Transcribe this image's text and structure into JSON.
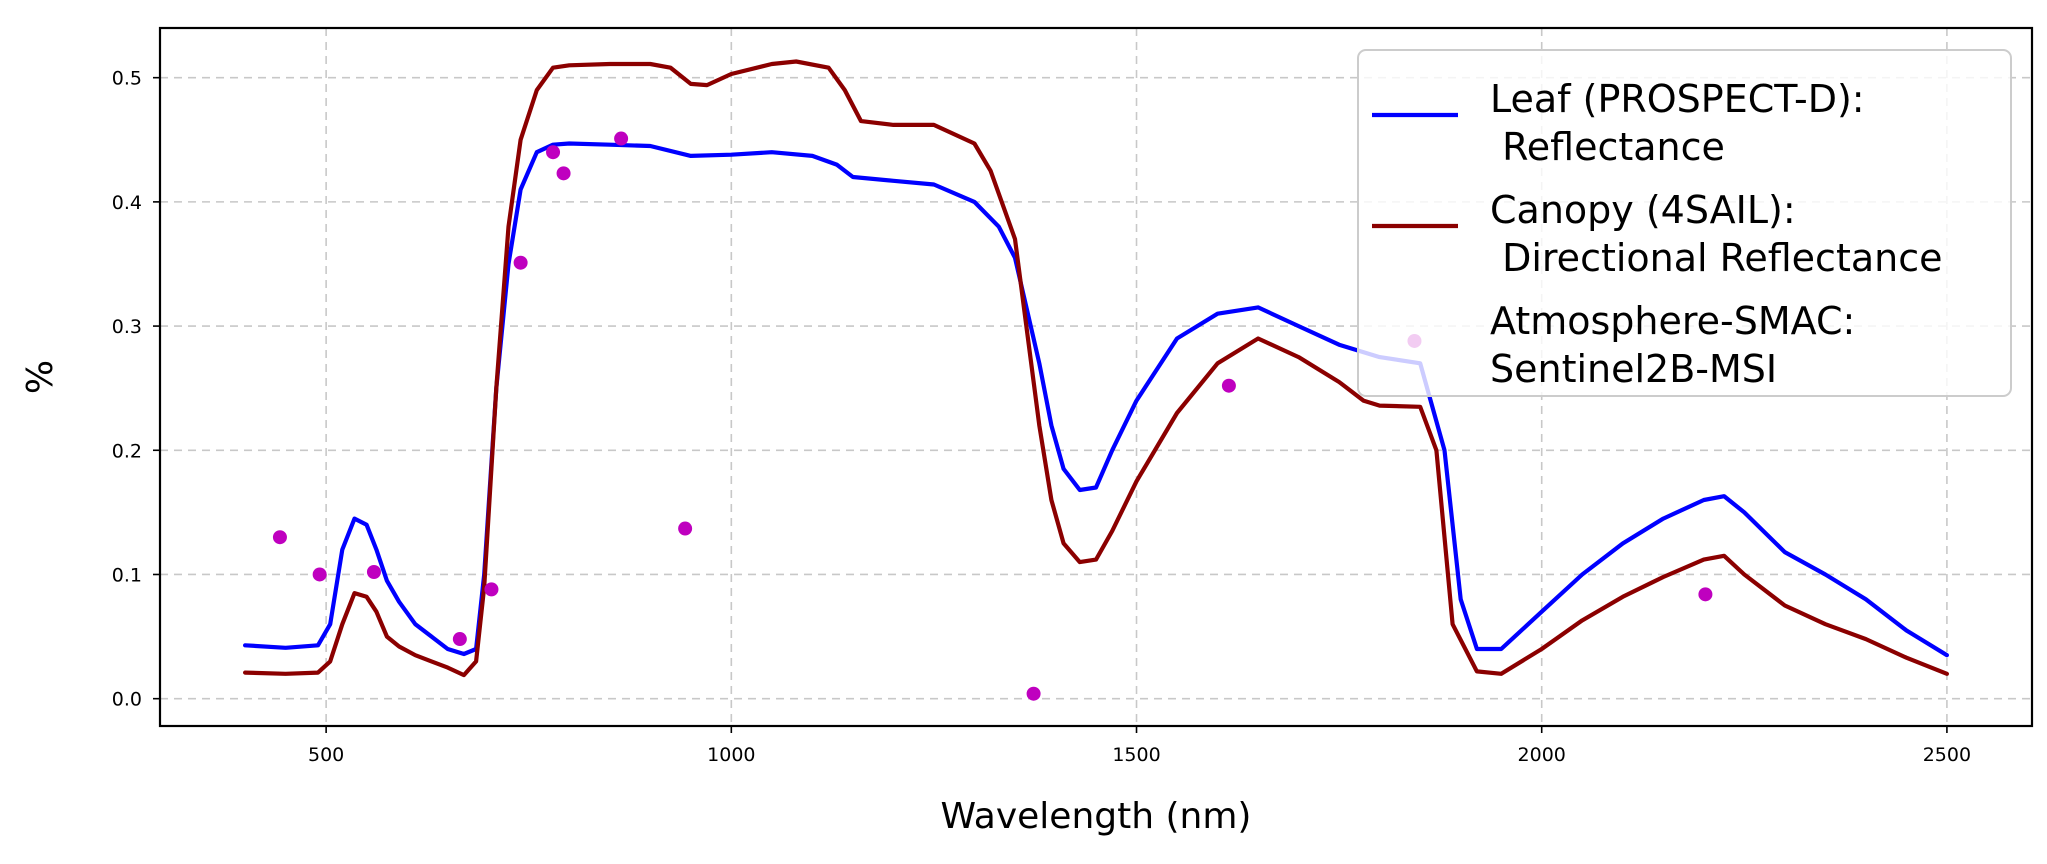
{
  "chart_data": {
    "type": "line",
    "xlabel": "Wavelength (nm)",
    "ylabel": "%",
    "xlim": [
      295,
      2605
    ],
    "ylim": [
      -0.022,
      0.54
    ],
    "xticks": [
      500,
      1000,
      1500,
      2000,
      2500
    ],
    "xtick_labels": [
      "500",
      "1000",
      "1500",
      "2000",
      "2500"
    ],
    "yticks": [
      0.0,
      0.1,
      0.2,
      0.3,
      0.4,
      0.5
    ],
    "ytick_labels": [
      "0.0",
      "0.1",
      "0.2",
      "0.3",
      "0.4",
      "0.5"
    ],
    "grid": true,
    "legend_position": "top-right",
    "legend": [
      {
        "key": "leaf",
        "lines": [
          "Leaf (PROSPECT-D):",
          " Reflectance"
        ]
      },
      {
        "key": "canopy",
        "lines": [
          "Canopy (4SAIL):",
          " Directional Reflectance"
        ]
      },
      {
        "key": "atmos",
        "lines": [
          "Atmosphere-SMAC:",
          "Sentinel2B-MSI"
        ]
      }
    ],
    "series": [
      {
        "key": "leaf",
        "name": "Leaf (PROSPECT-D): Reflectance",
        "color": "#0000ff",
        "style": "line",
        "x": [
          400,
          450,
          490,
          505,
          520,
          535,
          550,
          562,
          575,
          590,
          610,
          630,
          650,
          670,
          685,
          695,
          710,
          725,
          740,
          760,
          780,
          800,
          850,
          900,
          950,
          1000,
          1050,
          1100,
          1130,
          1150,
          1200,
          1250,
          1300,
          1330,
          1350,
          1380,
          1395,
          1410,
          1430,
          1450,
          1470,
          1500,
          1550,
          1600,
          1650,
          1700,
          1750,
          1800,
          1850,
          1880,
          1900,
          1920,
          1950,
          2000,
          2050,
          2100,
          2150,
          2200,
          2225,
          2250,
          2300,
          2350,
          2400,
          2450,
          2500
        ],
        "values": [
          0.043,
          0.041,
          0.043,
          0.06,
          0.12,
          0.145,
          0.14,
          0.12,
          0.095,
          0.078,
          0.06,
          0.05,
          0.04,
          0.036,
          0.04,
          0.1,
          0.25,
          0.35,
          0.41,
          0.44,
          0.446,
          0.447,
          0.446,
          0.445,
          0.437,
          0.438,
          0.44,
          0.437,
          0.43,
          0.42,
          0.417,
          0.414,
          0.4,
          0.38,
          0.355,
          0.27,
          0.22,
          0.185,
          0.168,
          0.17,
          0.2,
          0.24,
          0.29,
          0.31,
          0.315,
          0.3,
          0.285,
          0.275,
          0.27,
          0.2,
          0.08,
          0.04,
          0.04,
          0.07,
          0.1,
          0.125,
          0.145,
          0.16,
          0.163,
          0.15,
          0.118,
          0.1,
          0.08,
          0.055,
          0.035
        ]
      },
      {
        "key": "canopy",
        "name": "Canopy (4SAIL): Directional Reflectance",
        "color": "#8b0000",
        "style": "line",
        "x": [
          400,
          450,
          490,
          505,
          520,
          535,
          550,
          562,
          575,
          590,
          610,
          630,
          650,
          670,
          685,
          695,
          710,
          725,
          740,
          760,
          780,
          800,
          850,
          900,
          925,
          950,
          970,
          1000,
          1050,
          1080,
          1120,
          1140,
          1160,
          1200,
          1250,
          1300,
          1320,
          1350,
          1380,
          1395,
          1410,
          1430,
          1450,
          1470,
          1500,
          1550,
          1600,
          1650,
          1700,
          1750,
          1780,
          1800,
          1850,
          1870,
          1890,
          1920,
          1950,
          2000,
          2050,
          2100,
          2150,
          2200,
          2225,
          2250,
          2300,
          2350,
          2400,
          2450,
          2500
        ],
        "values": [
          0.021,
          0.02,
          0.021,
          0.03,
          0.06,
          0.085,
          0.082,
          0.07,
          0.05,
          0.042,
          0.035,
          0.03,
          0.025,
          0.019,
          0.03,
          0.09,
          0.25,
          0.38,
          0.45,
          0.49,
          0.508,
          0.51,
          0.511,
          0.511,
          0.508,
          0.495,
          0.494,
          0.503,
          0.511,
          0.513,
          0.508,
          0.49,
          0.465,
          0.462,
          0.462,
          0.447,
          0.425,
          0.37,
          0.22,
          0.16,
          0.125,
          0.11,
          0.112,
          0.135,
          0.175,
          0.23,
          0.27,
          0.29,
          0.275,
          0.255,
          0.24,
          0.236,
          0.235,
          0.2,
          0.06,
          0.022,
          0.02,
          0.04,
          0.063,
          0.082,
          0.098,
          0.112,
          0.115,
          0.1,
          0.075,
          0.06,
          0.048,
          0.033,
          0.02
        ]
      },
      {
        "key": "atmos",
        "name": "Atmosphere-SMAC: Sentinel2B-MSI",
        "color": "#bf00bf",
        "style": "scatter",
        "x": [
          443,
          492,
          559,
          665,
          704,
          740,
          780,
          793,
          864,
          943,
          1373,
          1614,
          1843,
          2202
        ],
        "values": [
          0.13,
          0.1,
          0.102,
          0.048,
          0.088,
          0.351,
          0.44,
          0.423,
          0.451,
          0.137,
          0.004,
          0.252,
          0.288,
          0.084
        ]
      }
    ]
  }
}
